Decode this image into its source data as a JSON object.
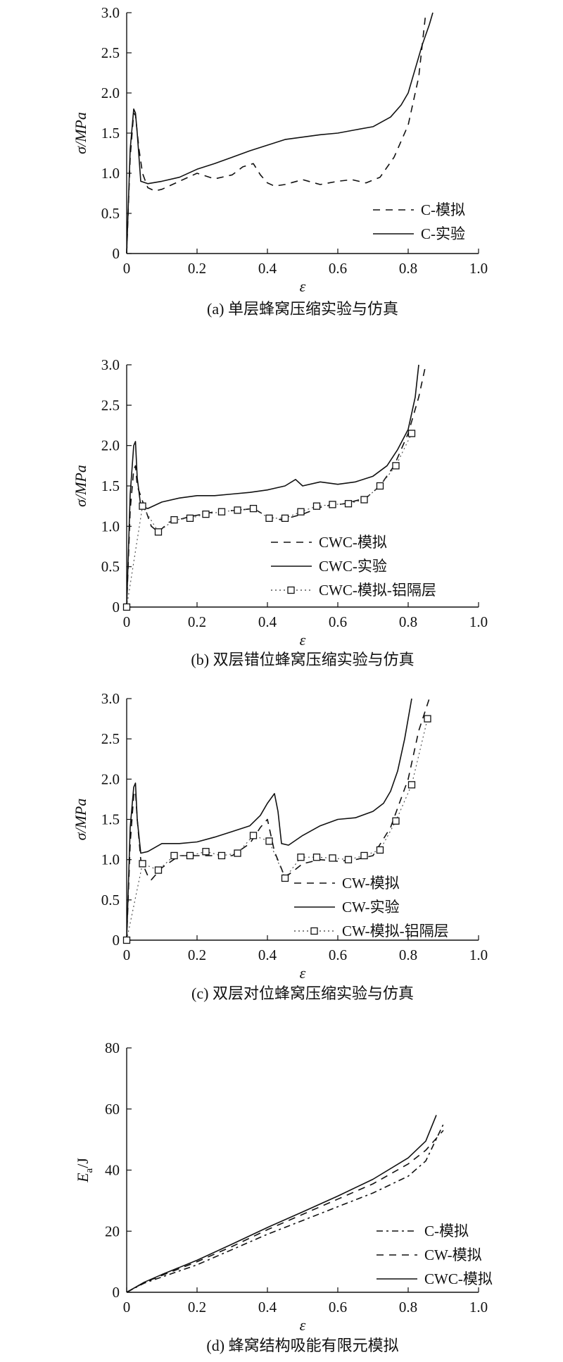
{
  "chart_data": [
    {
      "type": "line",
      "caption": "(a) 单层蜂窝压缩实验与仿真",
      "ylabel": "σ/MPa",
      "xlabel": "ε",
      "xlim": [
        0,
        1.0
      ],
      "ylim": [
        0,
        3.0
      ],
      "xticks": [
        "0",
        "0.2",
        "0.4",
        "0.6",
        "0.8",
        "1.0"
      ],
      "yticks": [
        "0",
        "0.5",
        "1.0",
        "1.5",
        "2.0",
        "2.5",
        "3.0"
      ],
      "legend_position": "bottom-right",
      "series": [
        {
          "name": "C-模拟",
          "style": "dashed",
          "x": [
            0,
            0.01,
            0.02,
            0.025,
            0.035,
            0.045,
            0.06,
            0.08,
            0.1,
            0.15,
            0.2,
            0.25,
            0.3,
            0.33,
            0.36,
            0.38,
            0.4,
            0.42,
            0.45,
            0.5,
            0.55,
            0.6,
            0.64,
            0.68,
            0.72,
            0.76,
            0.8,
            0.83,
            0.85
          ],
          "y": [
            0,
            1.2,
            1.75,
            1.72,
            1.3,
            1.0,
            0.82,
            0.78,
            0.8,
            0.9,
            1.0,
            0.93,
            0.98,
            1.08,
            1.12,
            0.98,
            0.88,
            0.84,
            0.86,
            0.92,
            0.86,
            0.9,
            0.92,
            0.88,
            0.95,
            1.2,
            1.6,
            2.2,
            3.0
          ]
        },
        {
          "name": "C-实验",
          "style": "solid",
          "x": [
            0,
            0.01,
            0.02,
            0.025,
            0.03,
            0.04,
            0.06,
            0.1,
            0.15,
            0.2,
            0.25,
            0.3,
            0.35,
            0.4,
            0.45,
            0.5,
            0.55,
            0.6,
            0.65,
            0.7,
            0.75,
            0.78,
            0.8,
            0.82,
            0.84,
            0.86,
            0.87
          ],
          "y": [
            0,
            1.3,
            1.8,
            1.75,
            1.5,
            0.9,
            0.87,
            0.9,
            0.95,
            1.05,
            1.12,
            1.2,
            1.28,
            1.35,
            1.42,
            1.45,
            1.48,
            1.5,
            1.54,
            1.58,
            1.7,
            1.85,
            2.0,
            2.3,
            2.6,
            2.85,
            3.0
          ]
        }
      ]
    },
    {
      "type": "line",
      "caption": "(b) 双层错位蜂窝压缩实验与仿真",
      "ylabel": "σ/MPa",
      "xlabel": "ε",
      "xlim": [
        0,
        1.0
      ],
      "ylim": [
        0,
        3.0
      ],
      "xticks": [
        "0",
        "0.2",
        "0.4",
        "0.6",
        "0.8",
        "1.0"
      ],
      "yticks": [
        "0",
        "0.5",
        "1.0",
        "1.5",
        "2.0",
        "2.5",
        "3.0"
      ],
      "legend_position": "bottom-right",
      "series": [
        {
          "name": "CWC-模拟",
          "style": "dashed",
          "x": [
            0,
            0.01,
            0.02,
            0.025,
            0.03,
            0.05,
            0.07,
            0.09,
            0.12,
            0.18,
            0.25,
            0.32,
            0.36,
            0.4,
            0.44,
            0.5,
            0.56,
            0.62,
            0.68,
            0.72,
            0.76,
            0.8,
            0.83,
            0.85
          ],
          "y": [
            0,
            1.2,
            1.7,
            1.75,
            1.5,
            1.25,
            1.0,
            0.93,
            1.05,
            1.12,
            1.18,
            1.2,
            1.22,
            1.12,
            1.08,
            1.15,
            1.25,
            1.28,
            1.35,
            1.5,
            1.75,
            2.15,
            2.6,
            3.0
          ]
        },
        {
          "name": "CWC-实验",
          "style": "solid",
          "x": [
            0,
            0.01,
            0.02,
            0.025,
            0.03,
            0.04,
            0.06,
            0.1,
            0.15,
            0.2,
            0.25,
            0.3,
            0.35,
            0.4,
            0.45,
            0.48,
            0.5,
            0.55,
            0.6,
            0.65,
            0.7,
            0.74,
            0.77,
            0.8,
            0.82,
            0.83
          ],
          "y": [
            0,
            1.4,
            2.0,
            2.05,
            1.6,
            1.25,
            1.22,
            1.3,
            1.35,
            1.38,
            1.38,
            1.4,
            1.42,
            1.45,
            1.5,
            1.58,
            1.5,
            1.55,
            1.52,
            1.55,
            1.62,
            1.75,
            1.95,
            2.2,
            2.6,
            3.0
          ]
        },
        {
          "name": "CWC-模拟-铝隔层",
          "style": "dotted-square",
          "x": [
            0,
            0.045,
            0.09,
            0.135,
            0.18,
            0.225,
            0.27,
            0.315,
            0.36,
            0.405,
            0.45,
            0.495,
            0.54,
            0.585,
            0.63,
            0.675,
            0.72,
            0.765,
            0.81
          ],
          "y": [
            0,
            1.25,
            0.93,
            1.08,
            1.1,
            1.15,
            1.18,
            1.2,
            1.22,
            1.1,
            1.1,
            1.18,
            1.25,
            1.27,
            1.28,
            1.33,
            1.5,
            1.75,
            2.15
          ]
        }
      ]
    },
    {
      "type": "line",
      "caption": "(c) 双层对位蜂窝压缩实验与仿真",
      "ylabel": "σ/MPa",
      "xlabel": "ε",
      "xlim": [
        0,
        1.0
      ],
      "ylim": [
        0,
        3.0
      ],
      "xticks": [
        "0",
        "0.2",
        "0.4",
        "0.6",
        "0.8",
        "1.0"
      ],
      "yticks": [
        "0",
        "0.5",
        "1.0",
        "1.5",
        "2.0",
        "2.5",
        "3.0"
      ],
      "legend_position": "bottom-right",
      "series": [
        {
          "name": "CW-模拟",
          "style": "dashed",
          "x": [
            0,
            0.01,
            0.02,
            0.025,
            0.03,
            0.04,
            0.06,
            0.07,
            0.1,
            0.15,
            0.2,
            0.25,
            0.3,
            0.35,
            0.38,
            0.4,
            0.42,
            0.45,
            0.48,
            0.5,
            0.55,
            0.6,
            0.65,
            0.7,
            0.75,
            0.8,
            0.83,
            0.86
          ],
          "y": [
            0,
            1.2,
            1.8,
            1.85,
            1.5,
            1.0,
            0.8,
            0.75,
            0.9,
            1.05,
            1.05,
            1.05,
            1.05,
            1.2,
            1.4,
            1.5,
            1.1,
            0.78,
            0.88,
            0.95,
            1.0,
            0.98,
            1.0,
            1.05,
            1.4,
            2.0,
            2.6,
            3.0
          ]
        },
        {
          "name": "CW-实验",
          "style": "solid",
          "x": [
            0,
            0.01,
            0.02,
            0.025,
            0.03,
            0.04,
            0.06,
            0.1,
            0.15,
            0.2,
            0.25,
            0.3,
            0.35,
            0.38,
            0.4,
            0.42,
            0.43,
            0.44,
            0.46,
            0.5,
            0.55,
            0.6,
            0.65,
            0.7,
            0.73,
            0.75,
            0.77,
            0.79,
            0.81
          ],
          "y": [
            0,
            1.4,
            1.9,
            1.95,
            1.5,
            1.08,
            1.1,
            1.2,
            1.2,
            1.22,
            1.28,
            1.35,
            1.42,
            1.55,
            1.7,
            1.82,
            1.6,
            1.2,
            1.18,
            1.3,
            1.42,
            1.5,
            1.52,
            1.6,
            1.7,
            1.85,
            2.1,
            2.5,
            3.0
          ]
        },
        {
          "name": "CW-模拟-铝隔层",
          "style": "dotted-square",
          "x": [
            0,
            0.045,
            0.09,
            0.135,
            0.18,
            0.225,
            0.27,
            0.315,
            0.36,
            0.405,
            0.45,
            0.495,
            0.54,
            0.585,
            0.63,
            0.675,
            0.72,
            0.765,
            0.81,
            0.855
          ],
          "y": [
            0,
            0.95,
            0.87,
            1.05,
            1.05,
            1.1,
            1.05,
            1.08,
            1.3,
            1.23,
            0.77,
            1.03,
            1.03,
            1.02,
            1.0,
            1.05,
            1.12,
            1.48,
            1.93,
            2.75
          ]
        }
      ]
    },
    {
      "type": "line",
      "caption": "(d) 蜂窝结构吸能有限元模拟",
      "ylabel": "Ea/J",
      "ylabel_main": "E",
      "ylabel_sub": "a",
      "ylabel_unit": "/J",
      "xlabel": "ε",
      "xlim": [
        0,
        1.0
      ],
      "ylim": [
        0,
        80
      ],
      "xticks": [
        "0",
        "0.2",
        "0.4",
        "0.6",
        "0.8",
        "1.0"
      ],
      "yticks": [
        "0",
        "20",
        "40",
        "60",
        "80"
      ],
      "legend_position": "bottom-right",
      "series": [
        {
          "name": "C-模拟",
          "style": "dashdot",
          "x": [
            0,
            0.05,
            0.1,
            0.2,
            0.3,
            0.4,
            0.5,
            0.6,
            0.7,
            0.8,
            0.85,
            0.9
          ],
          "y": [
            0,
            3,
            5,
            9,
            14,
            19,
            23.5,
            28,
            32.5,
            38,
            43,
            55
          ]
        },
        {
          "name": "CW-模拟",
          "style": "dashed",
          "x": [
            0,
            0.05,
            0.1,
            0.2,
            0.3,
            0.4,
            0.5,
            0.6,
            0.7,
            0.8,
            0.85,
            0.9
          ],
          "y": [
            0,
            3.2,
            5.5,
            10,
            15,
            20.5,
            25.5,
            30.5,
            35.5,
            42,
            46.5,
            53
          ]
        },
        {
          "name": "CWC-模拟",
          "style": "solid",
          "x": [
            0,
            0.05,
            0.1,
            0.2,
            0.3,
            0.4,
            0.5,
            0.6,
            0.7,
            0.8,
            0.85,
            0.88
          ],
          "y": [
            0,
            3.3,
            5.8,
            10.5,
            15.8,
            21.2,
            26.3,
            31.5,
            37,
            44,
            49.5,
            58
          ]
        }
      ]
    }
  ]
}
